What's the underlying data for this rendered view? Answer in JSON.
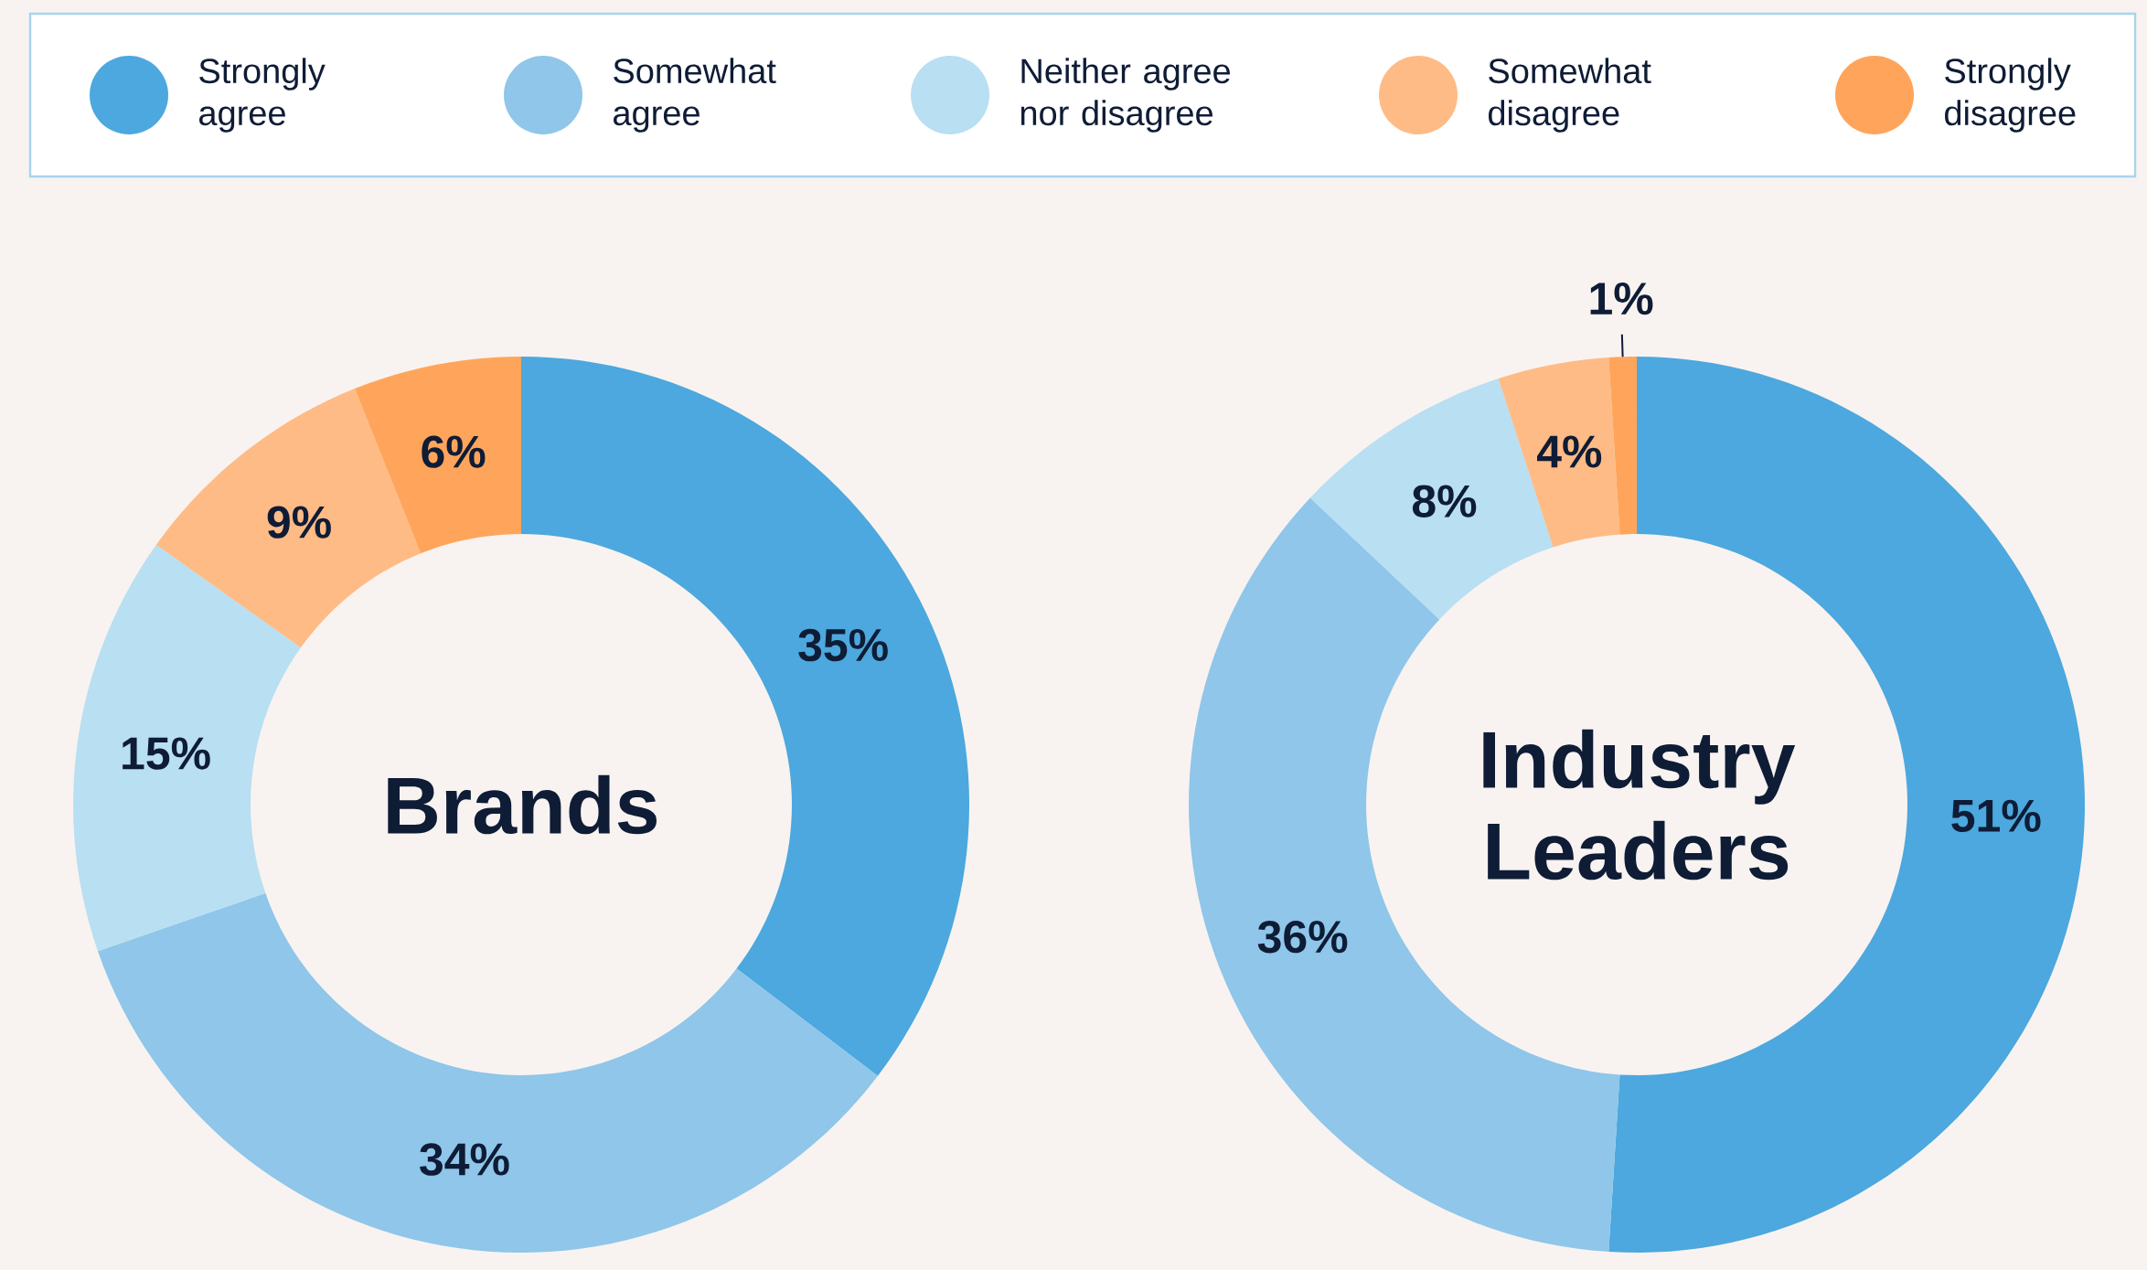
{
  "chart_data": [
    {
      "type": "donut",
      "title": "Brands",
      "categories": [
        "Strongly agree",
        "Somewhat agree",
        "Neither agree nor disagree",
        "Somewhat disagree",
        "Strongly disagree"
      ],
      "values": [
        35,
        34,
        15,
        9,
        6
      ],
      "value_labels": [
        "35%",
        "34%",
        "15%",
        "9%",
        "6%"
      ],
      "colors": [
        "#4ca8de",
        "#8fc6ea",
        "#b8dff2",
        "#ffbb85",
        "#ffa55b"
      ],
      "legend": "top"
    },
    {
      "type": "donut",
      "title": "Industry Leaders",
      "categories": [
        null,
        null,
        null,
        null,
        null
      ],
      "values": [
        51,
        36,
        8,
        4,
        1
      ],
      "value_labels": [
        "51%",
        "36%",
        "8%",
        "4%",
        "1%"
      ],
      "colors": [
        "#4ca8de",
        "#8fc6ea",
        "#b8dff2",
        "#ffbb85",
        "#ffa55b"
      ]
    }
  ]
}
